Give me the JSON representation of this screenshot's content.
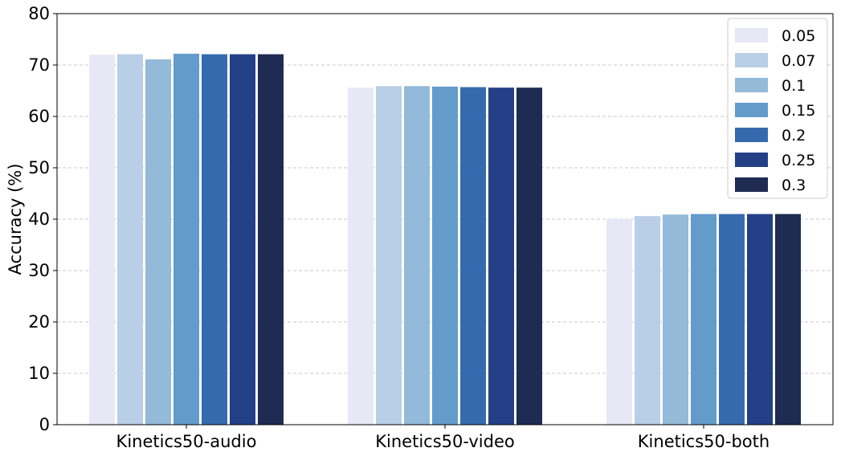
{
  "chart_data": {
    "type": "bar",
    "categories": [
      "Kinetics50-audio",
      "Kinetics50-video",
      "Kinetics50-both"
    ],
    "series": [
      {
        "name": "0.05",
        "color": "#e6e8f6",
        "values": [
          72.0,
          65.6,
          40.0
        ]
      },
      {
        "name": "0.07",
        "color": "#b9cfe7",
        "values": [
          72.1,
          65.9,
          40.6
        ]
      },
      {
        "name": "0.1",
        "color": "#93bad8",
        "values": [
          71.1,
          65.9,
          40.9
        ]
      },
      {
        "name": "0.15",
        "color": "#639bcb",
        "values": [
          72.2,
          65.8,
          41.0
        ]
      },
      {
        "name": "0.2",
        "color": "#356bae",
        "values": [
          72.1,
          65.7,
          41.0
        ]
      },
      {
        "name": "0.25",
        "color": "#233f86",
        "values": [
          72.1,
          65.6,
          41.0
        ]
      },
      {
        "name": "0.3",
        "color": "#1e2b52",
        "values": [
          72.1,
          65.6,
          41.0
        ]
      }
    ],
    "title": "",
    "xlabel": "",
    "ylabel": "Accuracy (%)",
    "ylim": [
      0,
      80
    ],
    "yticks": [
      0,
      10,
      20,
      30,
      40,
      50,
      60,
      70,
      80
    ],
    "grid": "horizontal-dashed",
    "legend": "top-right"
  }
}
